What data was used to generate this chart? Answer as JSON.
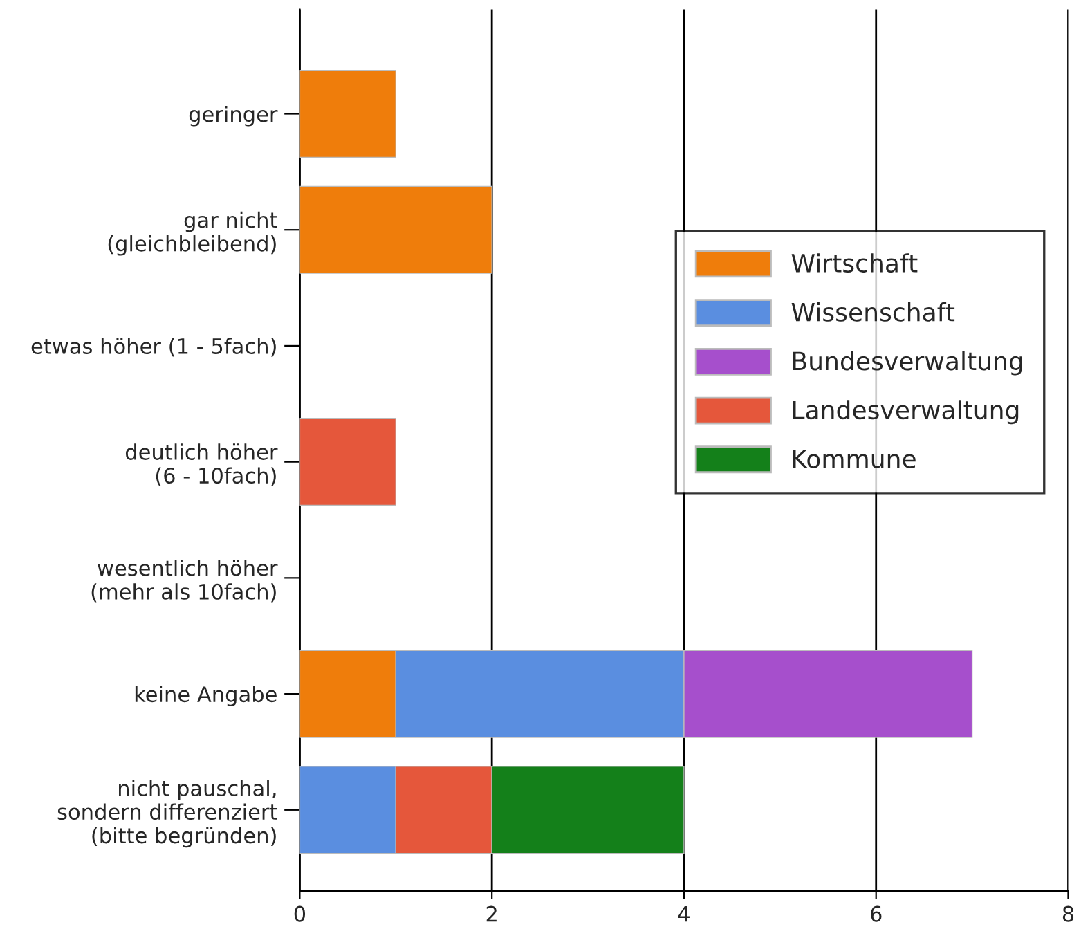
{
  "chart_data": {
    "type": "bar",
    "orientation": "horizontal",
    "stacked": true,
    "categories": [
      "geringer",
      "gar nicht\n(gleichbleibend)",
      "etwas höher (1 - 5fach)",
      "deutlich höher\n(6 - 10fach)",
      "wesentlich höher\n(mehr als 10fach)",
      "keine Angabe",
      "nicht pauschal,\nsondern differenziert\n(bitte begründen)"
    ],
    "series": [
      {
        "name": "Wirtschaft",
        "color": "#ef7d0b",
        "values": [
          1,
          2,
          null,
          null,
          null,
          1,
          null
        ]
      },
      {
        "name": "Wissenschaft",
        "color": "#5a8ee0",
        "values": [
          null,
          null,
          null,
          null,
          null,
          3,
          1
        ]
      },
      {
        "name": "Bundesverwaltung",
        "color": "#a64fcc",
        "values": [
          null,
          null,
          null,
          null,
          null,
          3,
          null
        ]
      },
      {
        "name": "Landesverwaltung",
        "color": "#e5573b",
        "values": [
          null,
          null,
          null,
          1,
          null,
          null,
          1
        ]
      },
      {
        "name": "Kommune",
        "color": "#14801a",
        "values": [
          null,
          null,
          null,
          null,
          null,
          null,
          2
        ]
      }
    ],
    "xlim": [
      0,
      8
    ],
    "xticks": [
      0,
      2,
      4,
      6,
      8
    ],
    "grid": "x",
    "legend": "right"
  }
}
